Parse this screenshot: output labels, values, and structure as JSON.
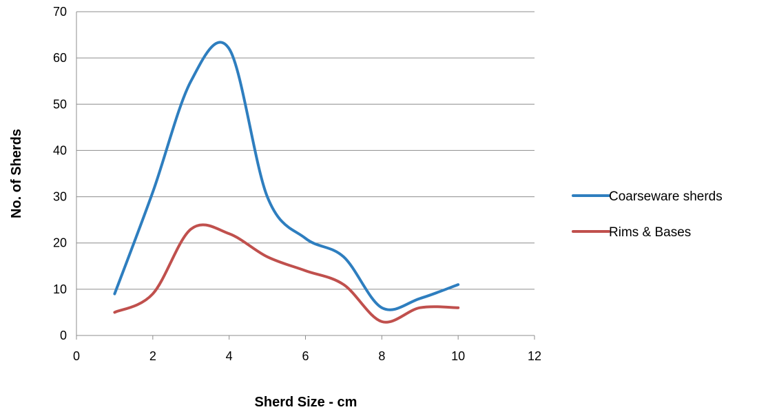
{
  "chart_data": {
    "type": "line",
    "title": "",
    "xlabel": "Sherd Size - cm",
    "ylabel": "No. of Sherds",
    "xlim": [
      0,
      12
    ],
    "ylim": [
      0,
      70
    ],
    "xticks": [
      0,
      2,
      4,
      6,
      8,
      10,
      12
    ],
    "yticks": [
      0,
      10,
      20,
      30,
      40,
      50,
      60,
      70
    ],
    "grid": "horizontal",
    "legend_position": "right",
    "smooth": true,
    "series": [
      {
        "name": "Coarseware sherds",
        "color": "#2e7ebf",
        "x": [
          1,
          2,
          3,
          4,
          5,
          6,
          7,
          8,
          9,
          10
        ],
        "y": [
          9,
          31,
          55,
          62,
          30,
          21,
          17,
          6,
          8,
          11
        ]
      },
      {
        "name": "Rims & Bases",
        "color": "#c0504d",
        "x": [
          1,
          2,
          3,
          4,
          5,
          6,
          7,
          8,
          9,
          10
        ],
        "y": [
          5,
          9,
          23,
          22,
          17,
          14,
          11,
          3,
          6,
          6
        ]
      }
    ]
  }
}
